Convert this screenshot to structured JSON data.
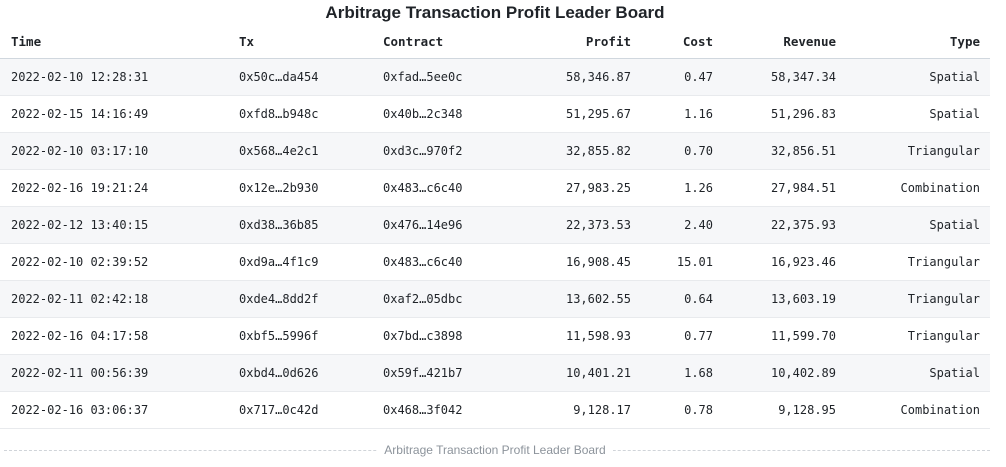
{
  "title": "Arbitrage Transaction Profit Leader Board",
  "caption": "Arbitrage Transaction Profit Leader Board",
  "columns": {
    "time": "Time",
    "tx": "Tx",
    "contract": "Contract",
    "profit": "Profit",
    "cost": "Cost",
    "revenue": "Revenue",
    "type": "Type"
  },
  "rows": [
    {
      "time": "2022-02-10 12:28:31",
      "tx": "0x50c…da454",
      "contract": "0xfad…5ee0c",
      "profit": "58,346.87",
      "cost": "0.47",
      "revenue": "58,347.34",
      "type": "Spatial"
    },
    {
      "time": "2022-02-15 14:16:49",
      "tx": "0xfd8…b948c",
      "contract": "0x40b…2c348",
      "profit": "51,295.67",
      "cost": "1.16",
      "revenue": "51,296.83",
      "type": "Spatial"
    },
    {
      "time": "2022-02-10 03:17:10",
      "tx": "0x568…4e2c1",
      "contract": "0xd3c…970f2",
      "profit": "32,855.82",
      "cost": "0.70",
      "revenue": "32,856.51",
      "type": "Triangular"
    },
    {
      "time": "2022-02-16 19:21:24",
      "tx": "0x12e…2b930",
      "contract": "0x483…c6c40",
      "profit": "27,983.25",
      "cost": "1.26",
      "revenue": "27,984.51",
      "type": "Combination"
    },
    {
      "time": "2022-02-12 13:40:15",
      "tx": "0xd38…36b85",
      "contract": "0x476…14e96",
      "profit": "22,373.53",
      "cost": "2.40",
      "revenue": "22,375.93",
      "type": "Spatial"
    },
    {
      "time": "2022-02-10 02:39:52",
      "tx": "0xd9a…4f1c9",
      "contract": "0x483…c6c40",
      "profit": "16,908.45",
      "cost": "15.01",
      "revenue": "16,923.46",
      "type": "Triangular"
    },
    {
      "time": "2022-02-11 02:42:18",
      "tx": "0xde4…8dd2f",
      "contract": "0xaf2…05dbc",
      "profit": "13,602.55",
      "cost": "0.64",
      "revenue": "13,603.19",
      "type": "Triangular"
    },
    {
      "time": "2022-02-16 04:17:58",
      "tx": "0xbf5…5996f",
      "contract": "0x7bd…c3898",
      "profit": "11,598.93",
      "cost": "0.77",
      "revenue": "11,599.70",
      "type": "Triangular"
    },
    {
      "time": "2022-02-11 00:56:39",
      "tx": "0xbd4…0d626",
      "contract": "0x59f…421b7",
      "profit": "10,401.21",
      "cost": "1.68",
      "revenue": "10,402.89",
      "type": "Spatial"
    },
    {
      "time": "2022-02-16 03:06:37",
      "tx": "0x717…0c42d",
      "contract": "0x468…3f042",
      "profit": "9,128.17",
      "cost": "0.78",
      "revenue": "9,128.95",
      "type": "Combination"
    }
  ]
}
